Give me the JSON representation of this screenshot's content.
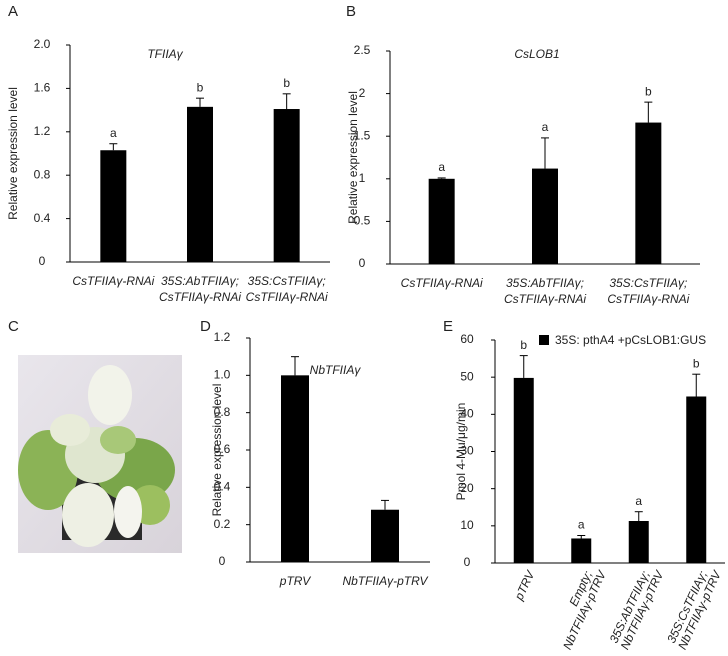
{
  "chart_data": [
    {
      "type": "bar",
      "panel_label": "A",
      "title": "TFIIAγ",
      "y_label": "Relative expression level",
      "categories": [
        [
          "CsTFIIAγ-RNAi"
        ],
        [
          "35S:AbTFIIAγ;",
          "CsTFIIAγ-RNAi"
        ],
        [
          "35S:CsTFIIAγ;",
          "CsTFIIAγ-RNAi"
        ]
      ],
      "series": [
        {
          "color": "#000000",
          "values": [
            1.03,
            1.43,
            1.41
          ],
          "errors": [
            0.06,
            0.08,
            0.14
          ]
        }
      ],
      "annotations": [
        "a",
        "b",
        "b"
      ],
      "ylim": [
        0,
        2
      ],
      "yticks": [
        0,
        0.4,
        0.8,
        1.2,
        1.6,
        {
          "value": 2,
          "label": "2.0"
        }
      ]
    },
    {
      "type": "bar",
      "panel_label": "B",
      "title": "CsLOB1",
      "y_label": "Relative expression level",
      "categories": [
        [
          "CsTFIIAγ-RNAi"
        ],
        [
          "35S:AbTFIIAγ;",
          "CsTFIIAγ-RNAi"
        ],
        [
          "35S:CsTFIIAγ;",
          "CsTFIIAγ-RNAi"
        ]
      ],
      "series": [
        {
          "color": "#000000",
          "values": [
            1.0,
            1.12,
            1.66
          ],
          "errors": [
            0.01,
            0.36,
            0.24
          ]
        }
      ],
      "annotations": [
        "a",
        "a",
        "b"
      ],
      "ylim": [
        0,
        2.5
      ],
      "yticks": [
        0,
        0.5,
        1,
        1.5,
        2,
        2.5
      ]
    },
    {
      "type": "bar",
      "panel_label": "D",
      "title": "NbTFIIAγ",
      "y_label": "Relative expression level",
      "categories": [
        [
          "pTRV"
        ],
        [
          "NbTFIIAγ-pTRV"
        ]
      ],
      "series": [
        {
          "color": "#000000",
          "values": [
            1.0,
            0.28
          ],
          "errors": [
            0.1,
            0.05
          ]
        }
      ],
      "ylim": [
        0,
        1.2
      ],
      "yticks": [
        0,
        0.2,
        0.4,
        0.6,
        0.8,
        {
          "value": 1,
          "label": "1.0"
        },
        1.2
      ]
    },
    {
      "type": "bar",
      "panel_label": "E",
      "y_label": "Pmol 4-Mu/μg/min",
      "categories": [
        [
          "pTRV"
        ],
        [
          "Empty;",
          "NbTFIIAγ-pTRV"
        ],
        [
          "35S:AbTFIIAγ;",
          "NbTFIIAγ-pTRV"
        ],
        [
          "35S:CsTFIIAγ;",
          "NbTFIIAγ-pTRV"
        ]
      ],
      "series": [
        {
          "name": "35S: pthA4 +pCsLOB1:GUS",
          "color": "#000000",
          "values": [
            49.8,
            6.6,
            11.3,
            44.8
          ],
          "errors": [
            6,
            0.8,
            2.5,
            6
          ]
        }
      ],
      "annotations": [
        "b",
        "a",
        "a",
        "b"
      ],
      "ylim": [
        0,
        60
      ],
      "yticks": [
        0,
        10,
        20,
        30,
        40,
        50,
        60
      ],
      "rotate_categories": true
    }
  ],
  "photo": {
    "panel_label": "C"
  }
}
